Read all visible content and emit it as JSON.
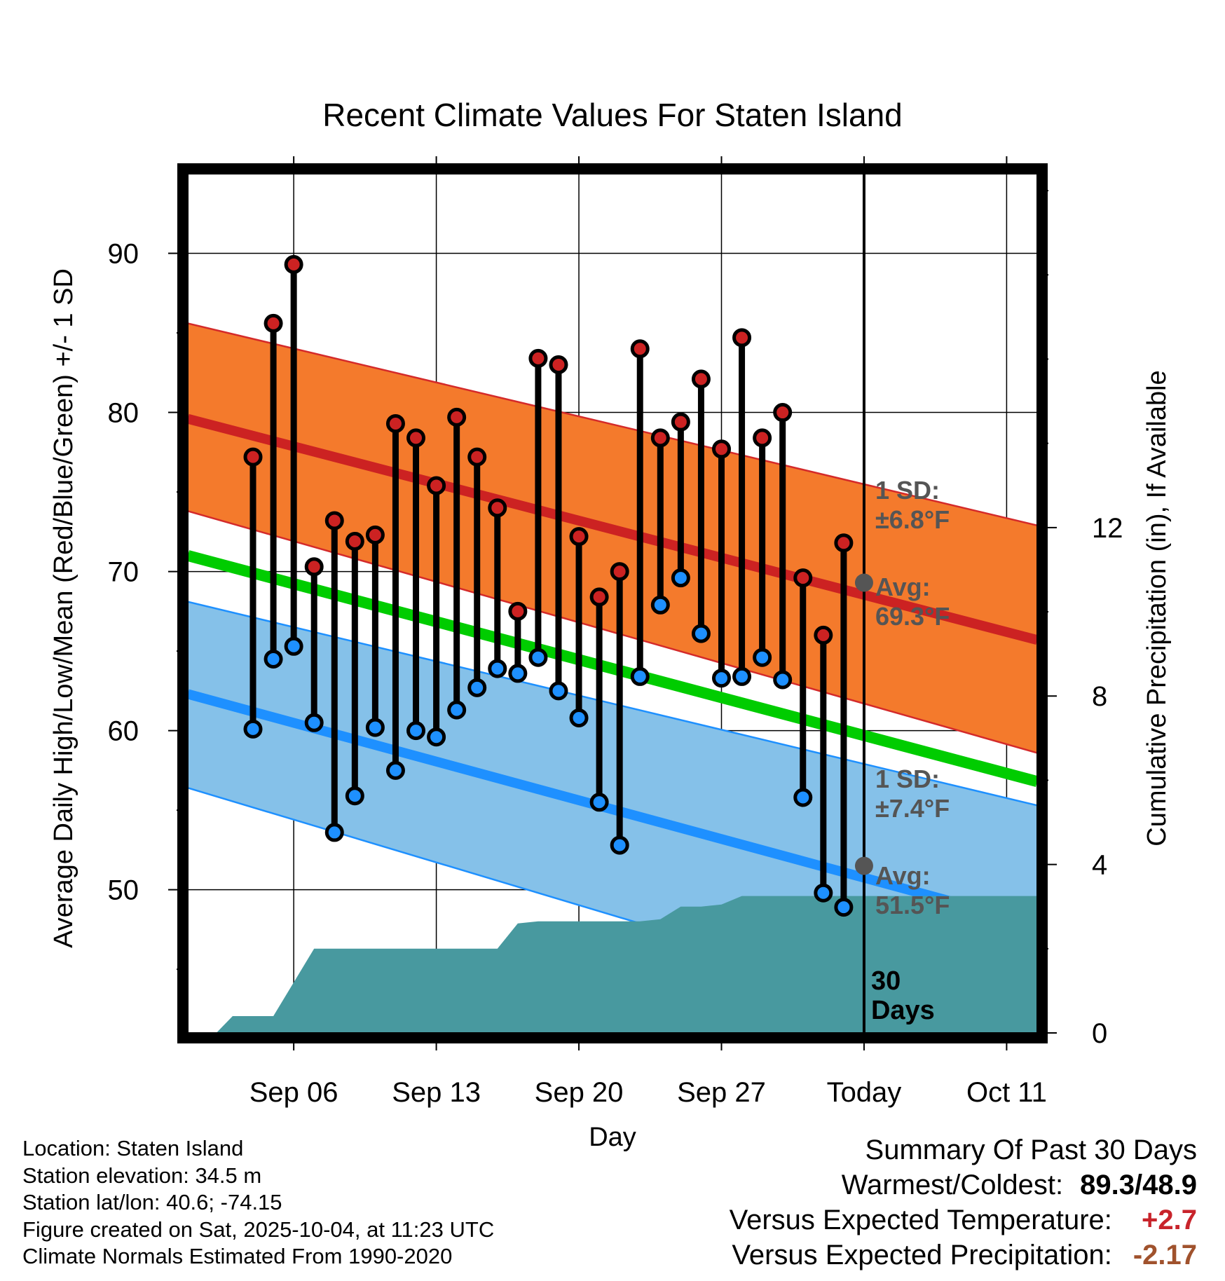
{
  "colors": {
    "high_band": "#f47a2c",
    "high_edge": "#d42a2a",
    "high_avg": "#cc2222",
    "low_band": "#85c1e9",
    "low_edge": "#1e90ff",
    "low_avg": "#1e90ff",
    "mean_line": "#00cc00",
    "precip": "#48999f",
    "high_dot": "#cc2222",
    "low_dot": "#1e90ff",
    "marker": "#555555"
  },
  "chart_data": {
    "type": "line",
    "title": "Recent Climate Values For Staten Island",
    "xlabel": "Day",
    "ylabel": "Average Daily High/Low/Mean (Red/Blue/Green) +/- 1 SD",
    "y2label": "Cumulative Precipitation (in), If Available",
    "x_range_days": [
      -33.2,
      8.5
    ],
    "ylim": [
      41,
      95
    ],
    "y_ticks": [
      50,
      60,
      70,
      80,
      90
    ],
    "y2lim": [
      0,
      20.4
    ],
    "y2_ticks": [
      0,
      4,
      8,
      12
    ],
    "x_ticks": [
      {
        "day": -28,
        "label": "Sep 06"
      },
      {
        "day": -21,
        "label": "Sep 13"
      },
      {
        "day": -14,
        "label": "Sep 20"
      },
      {
        "day": -7,
        "label": "Sep 27"
      },
      {
        "day": 0,
        "label": "Today"
      },
      {
        "day": 7,
        "label": "Oct 11"
      }
    ],
    "normals": {
      "x": [
        -33.2,
        8.5
      ],
      "high_avg": [
        79.6,
        65.7
      ],
      "high_upper": [
        85.6,
        72.9
      ],
      "high_lower": [
        73.8,
        58.6
      ],
      "low_avg": [
        62.3,
        47.8
      ],
      "low_upper": [
        68.1,
        55.3
      ],
      "low_lower": [
        56.4,
        40.4
      ],
      "mean": [
        71.0,
        56.8
      ]
    },
    "daily": {
      "day": [
        -30,
        -29,
        -28,
        -27,
        -26,
        -25,
        -24,
        -23,
        -22,
        -21,
        -20,
        -19,
        -18,
        -17,
        -16,
        -15,
        -14,
        -13,
        -12,
        -11,
        -10,
        -9,
        -8,
        -7,
        -6,
        -5,
        -4,
        -3,
        -2,
        -1
      ],
      "high": [
        77.2,
        85.6,
        89.3,
        70.3,
        73.2,
        71.9,
        72.3,
        79.3,
        78.4,
        75.4,
        79.7,
        77.2,
        74.0,
        67.5,
        83.4,
        83.0,
        72.2,
        68.4,
        70.0,
        84.0,
        78.4,
        79.4,
        82.1,
        77.7,
        84.7,
        78.4,
        80.0,
        69.6,
        66.0,
        71.8
      ],
      "low": [
        60.1,
        64.5,
        65.3,
        60.5,
        53.6,
        55.9,
        60.2,
        57.5,
        60.0,
        59.6,
        61.3,
        62.7,
        63.9,
        63.6,
        64.6,
        62.5,
        60.8,
        55.5,
        52.8,
        63.4,
        67.9,
        69.6,
        66.1,
        63.3,
        63.4,
        64.6,
        63.2,
        55.8,
        49.8,
        48.9
      ]
    },
    "precip": {
      "day": [
        -31.8,
        -31,
        -30,
        -29,
        -28,
        -27,
        -26,
        -25,
        -24,
        -23,
        -22,
        -21,
        -20,
        -19,
        -18,
        -17,
        -16,
        -15,
        -14,
        -13,
        -12,
        -11,
        -10,
        -9,
        -8,
        -7,
        -6,
        -5,
        -4,
        -3,
        -2,
        -1,
        0,
        8.5
      ],
      "cumulative": [
        0.0,
        0.4,
        0.4,
        0.4,
        1.2,
        2.0,
        2.0,
        2.0,
        2.0,
        2.0,
        2.0,
        2.0,
        2.0,
        2.0,
        2.0,
        2.6,
        2.65,
        2.65,
        2.65,
        2.65,
        2.65,
        2.65,
        2.7,
        3.0,
        3.0,
        3.05,
        3.25,
        3.25,
        3.25,
        3.25,
        3.25,
        3.25,
        3.25,
        3.25
      ]
    },
    "annotations": {
      "high_sd_label": "1 SD:",
      "high_sd_value": "±6.8°F",
      "high_avg_label": "Avg:",
      "high_avg_value": "69.3°F",
      "high_avg_today": 69.3,
      "low_sd_label": "1 SD:",
      "low_sd_value": "±7.4°F",
      "low_avg_label": "Avg:",
      "low_avg_value": "51.5°F",
      "low_avg_today": 51.5,
      "days_label_1": "30",
      "days_label_2": "Days"
    }
  },
  "info": {
    "location": "Location: Staten Island",
    "elevation": "Station elevation: 34.5 m",
    "latlon": "Station lat/lon: 40.6; -74.15",
    "created": "Figure created on Sat, 2025-10-04, at 11:23 UTC",
    "normals": "Climate Normals Estimated From 1990-2020"
  },
  "summary": {
    "title": "Summary Of Past 30 Days",
    "warm_label": "Warmest/Coldest:",
    "warmest": "89.3",
    "slash": "/",
    "coldest": "48.9",
    "temp_label": "Versus Expected Temperature:",
    "temp_value": "+2.7",
    "precip_label": "Versus Expected Precipitation:",
    "precip_value": "-2.17"
  }
}
